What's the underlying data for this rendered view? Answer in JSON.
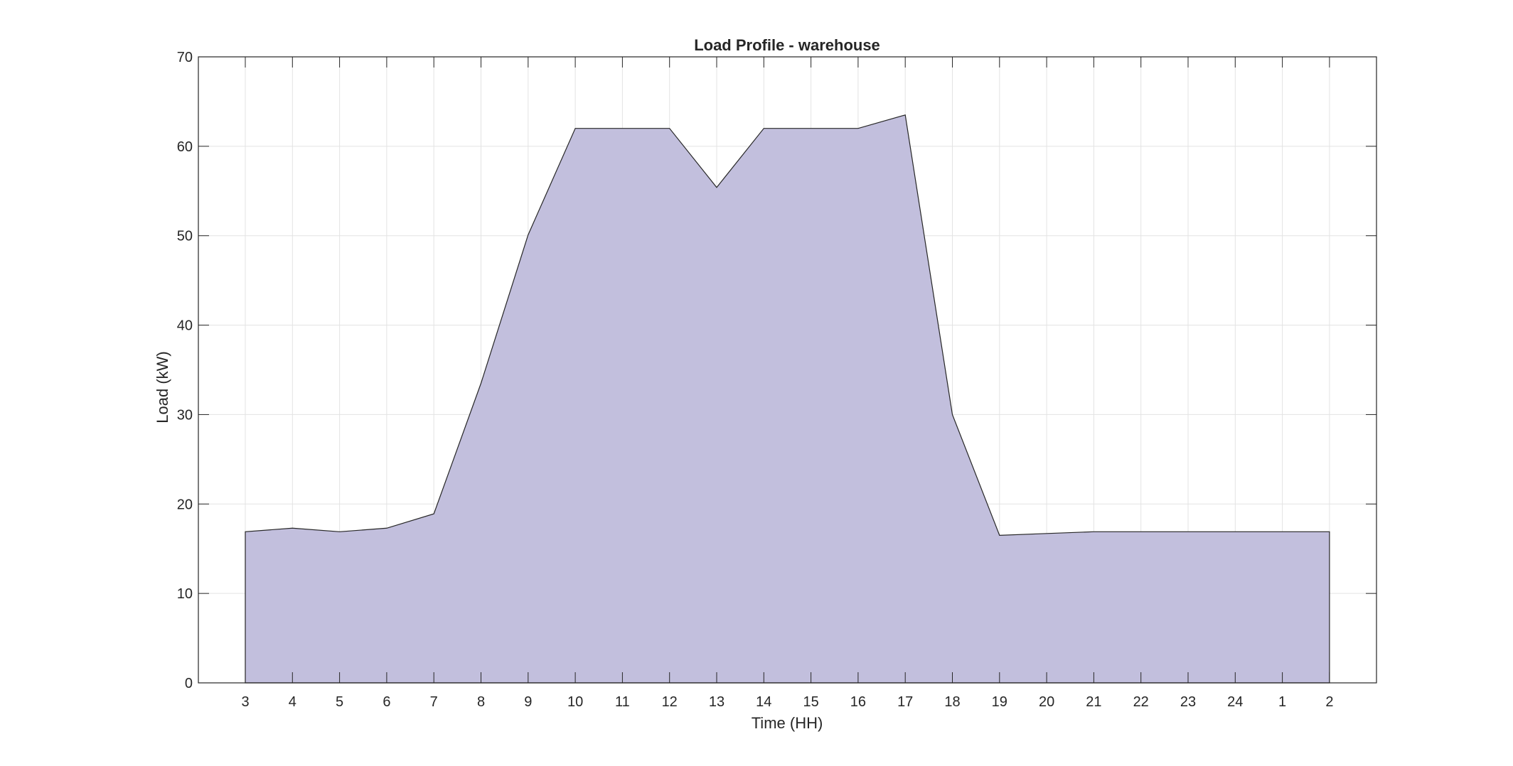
{
  "chart_data": {
    "type": "area",
    "title": "Load Profile - warehouse",
    "xlabel": "Time (HH)",
    "ylabel": "Load (kW)",
    "categories": [
      "3",
      "4",
      "5",
      "6",
      "7",
      "8",
      "9",
      "10",
      "11",
      "12",
      "13",
      "14",
      "15",
      "16",
      "17",
      "18",
      "19",
      "20",
      "21",
      "22",
      "23",
      "24",
      "1",
      "2"
    ],
    "values": [
      16.9,
      17.3,
      16.9,
      17.3,
      18.9,
      33.5,
      50.1,
      62.0,
      62.0,
      62.0,
      55.4,
      62.0,
      62.0,
      62.0,
      63.5,
      30.0,
      16.5,
      16.7,
      16.9,
      16.9,
      16.9,
      16.9,
      16.9,
      16.9
    ],
    "ylim": [
      0,
      70
    ],
    "yticks": [
      0,
      10,
      20,
      30,
      40,
      50,
      60,
      70
    ],
    "grid": true,
    "fill_color": "#c1bedc",
    "line_color": "#262626"
  }
}
